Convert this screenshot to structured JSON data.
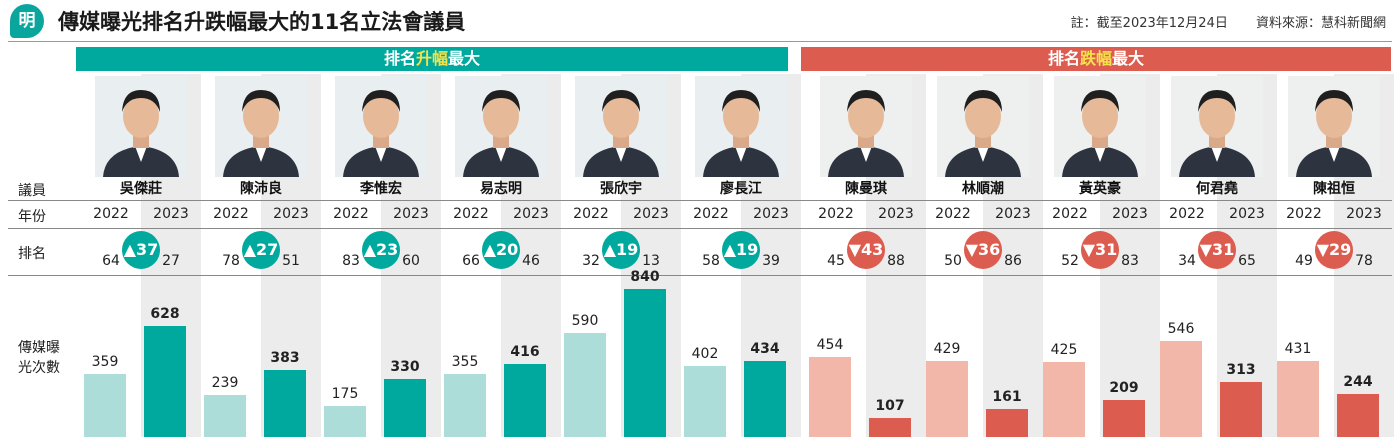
{
  "header": {
    "logo_text": "明",
    "title": "傳媒曝光排名升跌幅最大的11名立法會議員",
    "note": "註：截至2023年12月24日",
    "source": "資料來源：慧科新聞網"
  },
  "banners": {
    "up": {
      "a": "排名",
      "hl": "升幅",
      "b": "最大"
    },
    "down": {
      "a": "排名",
      "hl": "跌幅",
      "b": "最大"
    }
  },
  "row_labels": {
    "member": "議員",
    "year": "年份",
    "rank": "排名",
    "exposure": "傳媒曝光次數"
  },
  "colors": {
    "teal": "#00a99d",
    "teal_light": "#acddd8",
    "red": "#dc5d4f",
    "red_light": "#f3b7aa",
    "col_bg": "#ececec",
    "up_banner": "#00a99d",
    "down_banner": "#dc5d4f"
  },
  "chart_data": {
    "type": "bar",
    "title": "傳媒曝光排名升跌幅最大的11名立法會議員",
    "categories": [
      "吳傑莊",
      "陳沛良",
      "李惟宏",
      "易志明",
      "張欣宇",
      "廖長江",
      "陳曼琪",
      "林順潮",
      "黃英豪",
      "何君堯",
      "陳祖恒"
    ],
    "years": [
      "2022",
      "2023"
    ],
    "series": [
      {
        "name": "2022",
        "values": [
          359,
          239,
          175,
          355,
          590,
          402,
          454,
          429,
          425,
          546,
          431
        ]
      },
      {
        "name": "2023",
        "values": [
          628,
          383,
          330,
          416,
          840,
          434,
          107,
          161,
          209,
          313,
          244
        ]
      }
    ],
    "rank_2022": [
      64,
      78,
      83,
      66,
      32,
      58,
      45,
      50,
      52,
      34,
      49
    ],
    "rank_2023": [
      27,
      51,
      60,
      46,
      13,
      39,
      88,
      86,
      83,
      65,
      78
    ],
    "rank_change": [
      "▲37",
      "▲27",
      "▲23",
      "▲20",
      "▲19",
      "▲19",
      "▼43",
      "▼36",
      "▼31",
      "▼31",
      "▼29"
    ],
    "direction": [
      "up",
      "up",
      "up",
      "up",
      "up",
      "up",
      "down",
      "down",
      "down",
      "down",
      "down"
    ],
    "ylim": [
      0,
      900
    ]
  }
}
